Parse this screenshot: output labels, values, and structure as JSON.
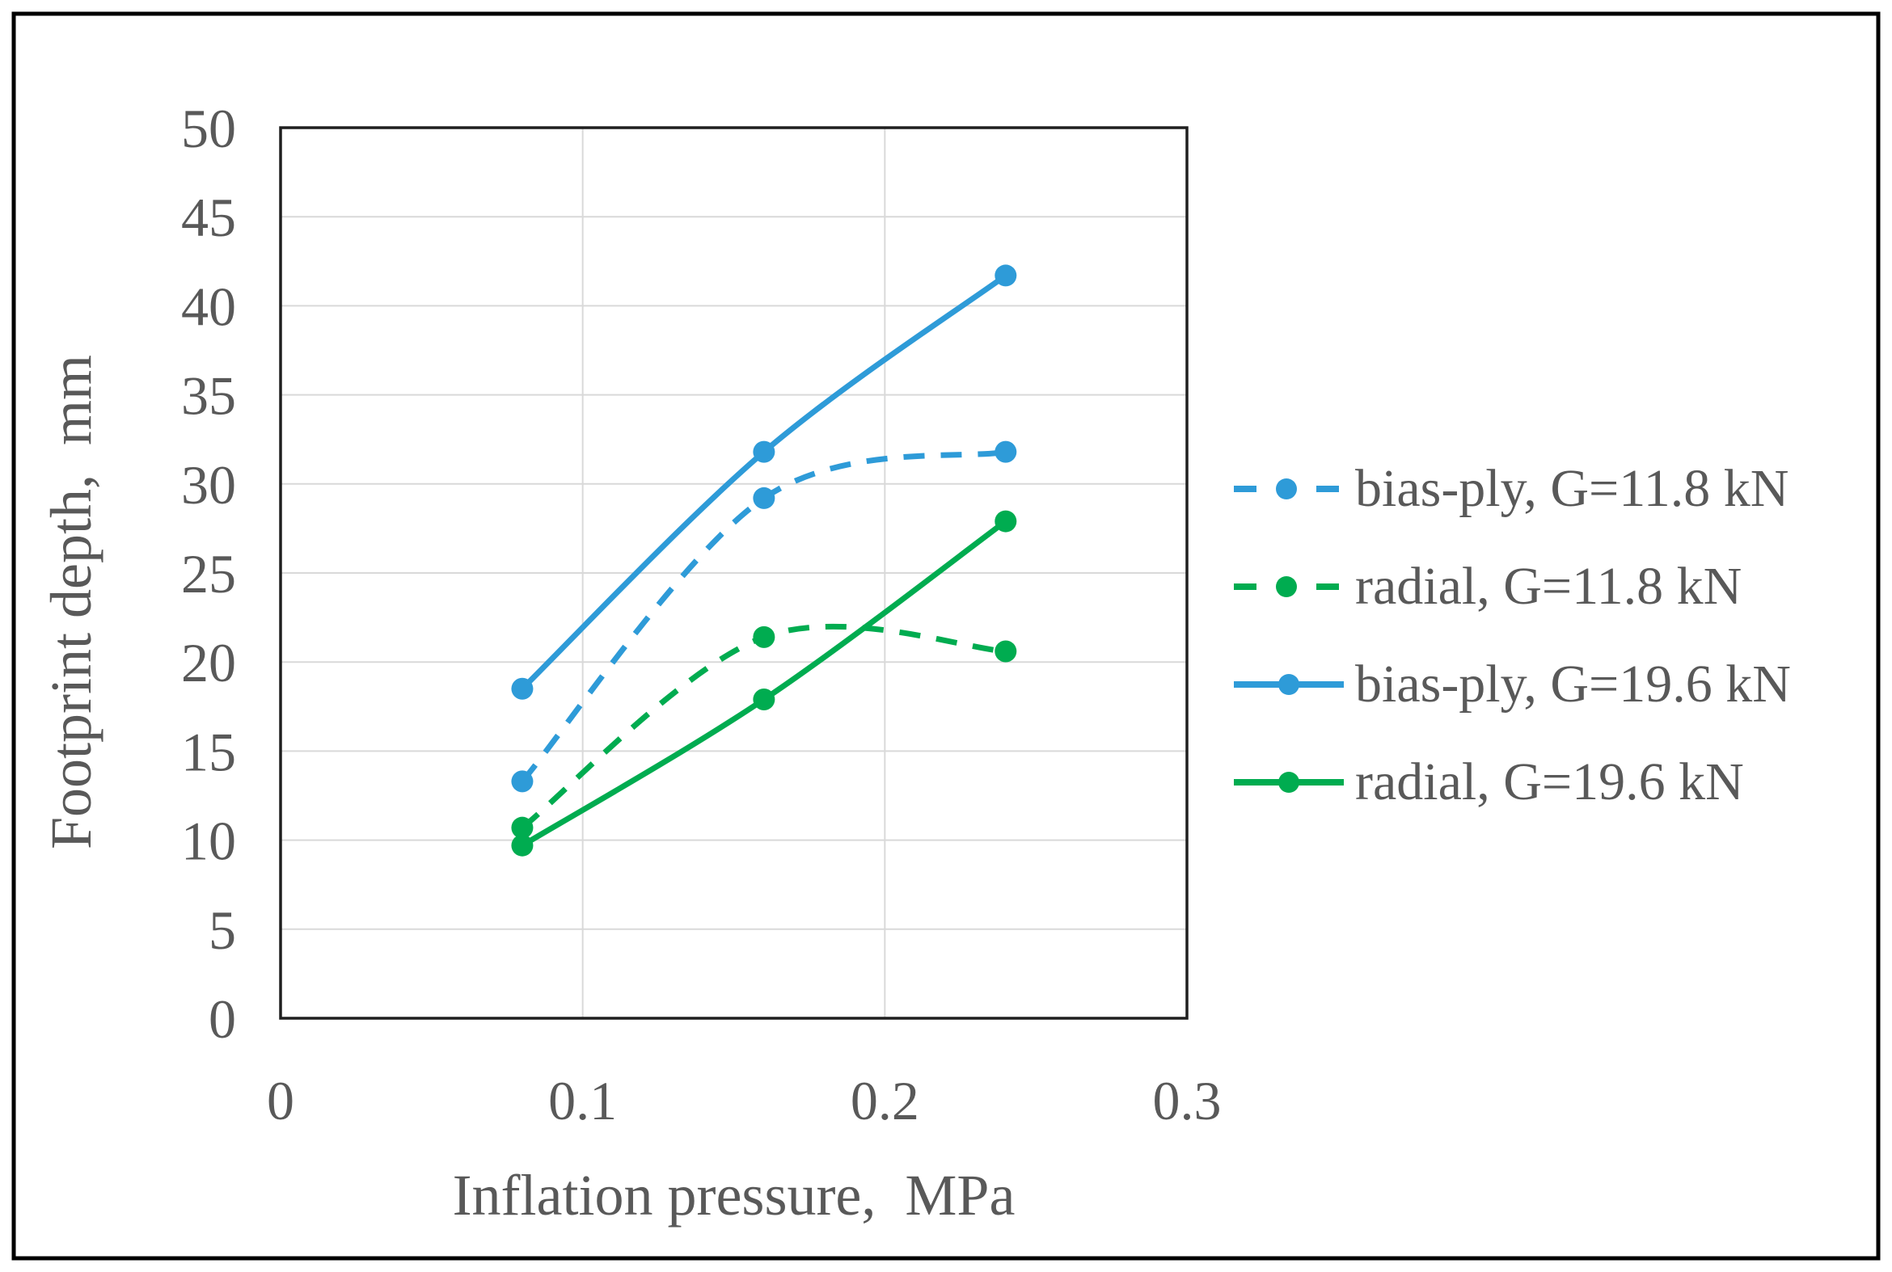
{
  "figure": {
    "background": "#ffffff",
    "border_color": "#000000"
  },
  "style": {
    "axis_text_color": "#595959",
    "gridline_color": "#d9d9d9",
    "plot_border_color": "#1f1f1f",
    "blue": "#2e9bd8",
    "green": "#00ac50"
  },
  "chart_data": {
    "type": "line",
    "title": "",
    "xlabel": "Inflation pressure,  MPa",
    "ylabel": "Footprint depth,  mm",
    "x": [
      0.08,
      0.16,
      0.24
    ],
    "series": [
      {
        "name": "bias-ply, G=11.8 kN",
        "values": [
          13.3,
          29.2,
          31.8
        ],
        "color": "#2e9bd8",
        "style": "dashed",
        "marker": "circle"
      },
      {
        "name": "radial, G=11.8 kN",
        "values": [
          10.7,
          21.4,
          20.6
        ],
        "color": "#00ac50",
        "style": "dashed",
        "marker": "circle"
      },
      {
        "name": "bias-ply, G=19.6 kN",
        "values": [
          18.5,
          31.8,
          41.7
        ],
        "color": "#2e9bd8",
        "style": "solid",
        "marker": "circle"
      },
      {
        "name": "radial, G=19.6 kN",
        "values": [
          9.7,
          17.9,
          27.9
        ],
        "color": "#00ac50",
        "style": "solid",
        "marker": "circle"
      }
    ],
    "xlim": [
      0,
      0.3
    ],
    "ylim": [
      0,
      50
    ],
    "x_ticks": [
      "0",
      "0.1",
      "0.2",
      "0.3"
    ],
    "x_tick_values": [
      0,
      0.1,
      0.2,
      0.3
    ],
    "y_ticks": [
      "0",
      "5",
      "10",
      "15",
      "20",
      "25",
      "30",
      "35",
      "40",
      "45",
      "50"
    ],
    "y_tick_values": [
      0,
      5,
      10,
      15,
      20,
      25,
      30,
      35,
      40,
      45,
      50
    ],
    "grid": true,
    "smoothed": true,
    "legend_position": "right"
  }
}
